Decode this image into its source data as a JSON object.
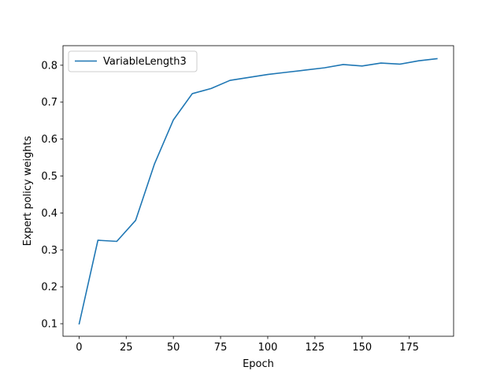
{
  "chart_data": {
    "type": "line",
    "title": "",
    "xlabel": "Epoch",
    "ylabel": "Expert policy weights",
    "xlim": [
      -8.5,
      198.5
    ],
    "ylim": [
      0.066,
      0.853
    ],
    "xticks": [
      0,
      25,
      50,
      75,
      100,
      125,
      150,
      175
    ],
    "yticks": [
      0.1,
      0.2,
      0.3,
      0.4,
      0.5,
      0.6,
      0.7,
      0.8
    ],
    "xtick_labels": [
      "0",
      "25",
      "50",
      "75",
      "100",
      "125",
      "150",
      "175"
    ],
    "ytick_labels": [
      "0.1",
      "0.2",
      "0.3",
      "0.4",
      "0.5",
      "0.6",
      "0.7",
      "0.8"
    ],
    "grid": false,
    "legend_position": "upper-left",
    "series": [
      {
        "name": "VariableLength3",
        "color": "#1f77b4",
        "x": [
          0,
          10,
          20,
          30,
          40,
          50,
          60,
          70,
          80,
          90,
          100,
          110,
          120,
          130,
          140,
          150,
          160,
          170,
          180,
          190
        ],
        "y": [
          0.098,
          0.326,
          0.323,
          0.38,
          0.533,
          0.652,
          0.723,
          0.737,
          0.759,
          0.767,
          0.775,
          0.781,
          0.787,
          0.793,
          0.802,
          0.798,
          0.806,
          0.803,
          0.812,
          0.818
        ]
      }
    ]
  }
}
